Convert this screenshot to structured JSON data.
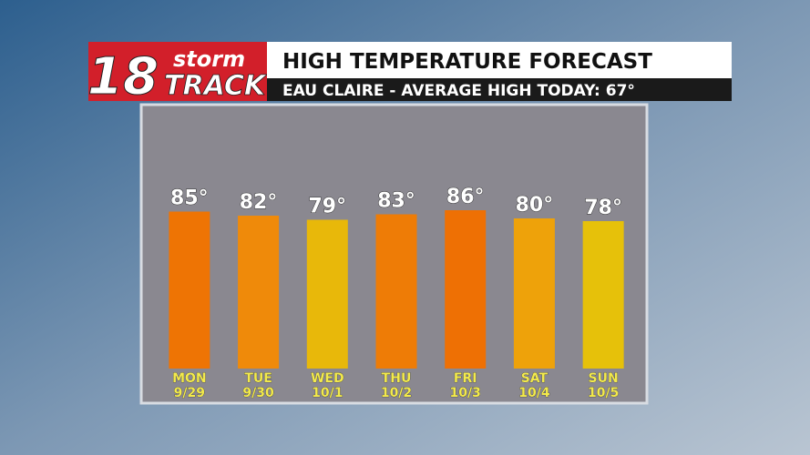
{
  "logo": {
    "number": "18",
    "top": "storm",
    "bottom": "TRACK"
  },
  "chart_data": {
    "type": "bar",
    "title": "HIGH TEMPERATURE FORECAST",
    "subtitle": "EAU CLAIRE - AVERAGE HIGH TODAY: 67°",
    "categories": [
      "MON",
      "TUE",
      "WED",
      "THU",
      "FRI",
      "SAT",
      "SUN"
    ],
    "dates": [
      "9/29",
      "9/30",
      "10/1",
      "10/2",
      "10/3",
      "10/4",
      "10/5"
    ],
    "values": [
      85,
      82,
      79,
      83,
      86,
      80,
      78
    ],
    "value_labels": [
      "85°",
      "82°",
      "79°",
      "83°",
      "86°",
      "80°",
      "78°"
    ],
    "colors": [
      "#ee7404",
      "#ef8a0a",
      "#e8b80a",
      "#ee7c06",
      "#ee7004",
      "#eea20a",
      "#e6c10a"
    ],
    "ylim": [
      -30,
      100
    ]
  }
}
